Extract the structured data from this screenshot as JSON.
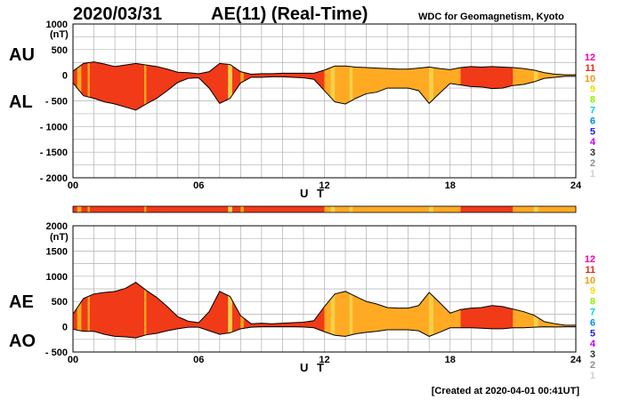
{
  "header": {
    "date": "2020/03/31",
    "title": "AE(11) (Real-Time)",
    "source": "WDC for Geomagnetism, Kyoto"
  },
  "footer": {
    "created": "[Created at 2020-04-01 00:41UT]"
  },
  "kp_legend": {
    "levels": [
      "12",
      "11",
      "10",
      "9",
      "8",
      "7",
      "6",
      "5",
      "4",
      "3",
      "2",
      "1"
    ],
    "colors": [
      "#ff00a0",
      "#e8281a",
      "#f59a16",
      "#f0e000",
      "#90ee00",
      "#00d8d8",
      "#0090f0",
      "#2020e0",
      "#c000ff",
      "#303030",
      "#909090",
      "#d0d0d0"
    ]
  },
  "activity_colors": {
    "12": "#ffaa22",
    "11": "#f03a18",
    "10": "#f5a81c",
    "9": "#f3d04a"
  },
  "chart_data": [
    {
      "type": "area",
      "name": "AU-AL",
      "series_labels": [
        "AU",
        "AL"
      ],
      "ylabel": "(nT)",
      "xlabel": "U T",
      "xlim": [
        0,
        24
      ],
      "ylim": [
        -2000,
        1000
      ],
      "yticks": [
        1000,
        500,
        0,
        -500,
        -1000,
        -1500,
        -2000
      ],
      "ytick_labels": [
        "1000",
        "500",
        "0",
        "- 500",
        "- 1000",
        "- 1500",
        "- 2000"
      ],
      "xticks": [
        0,
        6,
        12,
        18,
        24
      ],
      "xtick_labels": [
        "00",
        "06",
        "12",
        "18",
        "24"
      ],
      "grid": true,
      "x": [
        0,
        0.5,
        1,
        1.5,
        2,
        2.5,
        3,
        3.5,
        4,
        4.5,
        5,
        5.5,
        6,
        6.5,
        7,
        7.5,
        8,
        8.5,
        9,
        9.5,
        10,
        10.5,
        11,
        11.5,
        12,
        12.5,
        13,
        13.5,
        14,
        14.5,
        15,
        15.5,
        16,
        16.5,
        17,
        17.5,
        18,
        18.5,
        19,
        19.5,
        20,
        20.5,
        21,
        21.5,
        22,
        22.5,
        23,
        23.5,
        24
      ],
      "AU": [
        80,
        230,
        260,
        220,
        170,
        200,
        230,
        200,
        170,
        120,
        60,
        50,
        30,
        70,
        230,
        210,
        70,
        20,
        30,
        30,
        40,
        40,
        40,
        40,
        100,
        180,
        180,
        160,
        150,
        140,
        130,
        120,
        120,
        140,
        160,
        130,
        110,
        150,
        170,
        160,
        170,
        160,
        150,
        130,
        100,
        50,
        20,
        10,
        10
      ],
      "AL": [
        -150,
        -400,
        -450,
        -520,
        -560,
        -620,
        -680,
        -560,
        -450,
        -300,
        -140,
        -60,
        -50,
        -250,
        -550,
        -450,
        -150,
        -40,
        -40,
        -30,
        -30,
        -40,
        -50,
        -80,
        -300,
        -520,
        -560,
        -450,
        -360,
        -330,
        -250,
        -250,
        -250,
        -300,
        -550,
        -350,
        -160,
        -190,
        -220,
        -230,
        -260,
        -250,
        -200,
        -180,
        -130,
        -60,
        -40,
        -20,
        -20
      ]
    },
    {
      "type": "area",
      "name": "AE-AO",
      "series_labels": [
        "AE",
        "AO"
      ],
      "ylabel": "(nT)",
      "xlabel": "U T",
      "xlim": [
        0,
        24
      ],
      "ylim": [
        -500,
        2000
      ],
      "yticks": [
        2000,
        1500,
        1000,
        500,
        0,
        -500
      ],
      "ytick_labels": [
        "2000",
        "1500",
        "1000",
        "500",
        "0",
        "- 500"
      ],
      "xticks": [
        0,
        6,
        12,
        18,
        24
      ],
      "xtick_labels": [
        "00",
        "06",
        "12",
        "18",
        "24"
      ],
      "grid": true,
      "x": [
        0,
        0.5,
        1,
        1.5,
        2,
        2.5,
        3,
        3.5,
        4,
        4.5,
        5,
        5.5,
        6,
        6.5,
        7,
        7.5,
        8,
        8.5,
        9,
        9.5,
        10,
        10.5,
        11,
        11.5,
        12,
        12.5,
        13,
        13.5,
        14,
        14.5,
        15,
        15.5,
        16,
        16.5,
        17,
        17.5,
        18,
        18.5,
        19,
        19.5,
        20,
        20.5,
        21,
        21.5,
        22,
        22.5,
        23,
        23.5,
        24
      ],
      "AE": [
        250,
        560,
        650,
        680,
        700,
        760,
        880,
        720,
        580,
        400,
        200,
        110,
        80,
        300,
        700,
        600,
        220,
        60,
        70,
        60,
        70,
        80,
        90,
        120,
        400,
        650,
        700,
        600,
        500,
        450,
        380,
        370,
        370,
        420,
        680,
        480,
        270,
        340,
        370,
        380,
        420,
        400,
        350,
        300,
        230,
        100,
        60,
        30,
        30
      ],
      "AO": [
        -50,
        -90,
        -90,
        -150,
        -190,
        -200,
        -220,
        -160,
        -130,
        -80,
        -40,
        -10,
        -10,
        -80,
        -150,
        -120,
        -40,
        -10,
        0,
        0,
        0,
        0,
        -5,
        -20,
        -100,
        -170,
        -190,
        -140,
        -110,
        -90,
        -60,
        -60,
        -60,
        -80,
        -190,
        -110,
        -20,
        -20,
        -20,
        -30,
        -40,
        -40,
        -20,
        -20,
        -10,
        0,
        -5,
        0,
        0
      ]
    }
  ],
  "activity_bar": {
    "segments": [
      {
        "from": 0,
        "to": 12,
        "level": "11"
      },
      {
        "from": 12,
        "to": 18.5,
        "level": "12"
      },
      {
        "from": 18.5,
        "to": 21,
        "level": "11"
      },
      {
        "from": 21,
        "to": 24,
        "level": "12"
      }
    ],
    "highlights": [
      {
        "from": 0.2,
        "to": 0.4,
        "level": "10"
      },
      {
        "from": 0.7,
        "to": 0.8,
        "level": "10"
      },
      {
        "from": 3.4,
        "to": 3.5,
        "level": "10"
      },
      {
        "from": 7.4,
        "to": 7.6,
        "level": "9"
      },
      {
        "from": 8.0,
        "to": 8.15,
        "level": "10"
      },
      {
        "from": 12.3,
        "to": 12.5,
        "level": "9"
      },
      {
        "from": 13.2,
        "to": 13.35,
        "level": "9"
      },
      {
        "from": 17.0,
        "to": 17.2,
        "level": "9"
      },
      {
        "from": 22.0,
        "to": 22.2,
        "level": "9"
      }
    ]
  }
}
